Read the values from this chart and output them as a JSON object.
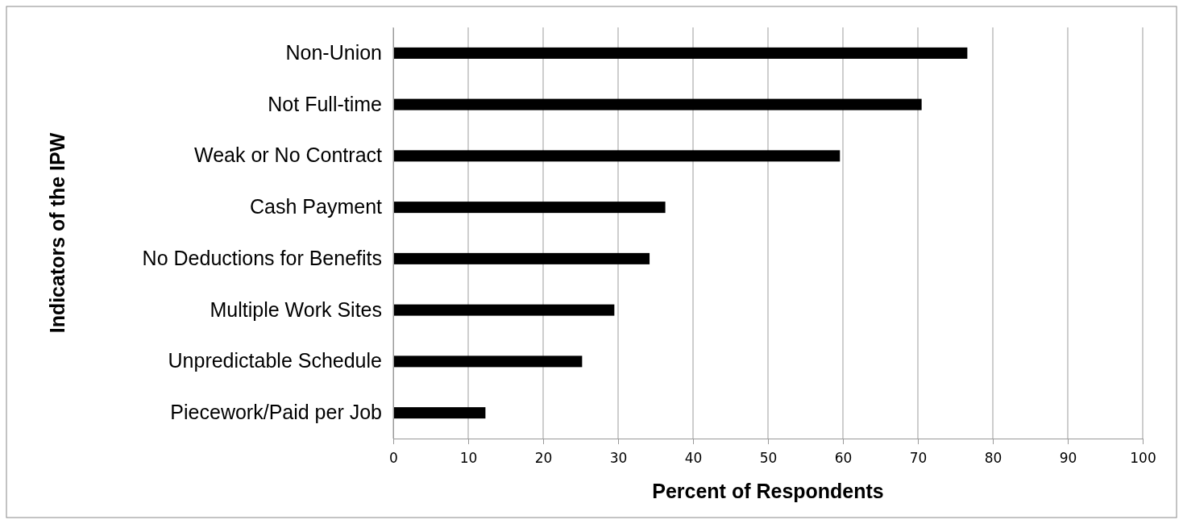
{
  "chart_data": {
    "type": "bar",
    "orientation": "horizontal",
    "xlabel": "Percent of Respondents",
    "ylabel": "Indicators of the IPW",
    "categories": [
      "Non-Union",
      "Not Full-time",
      "Weak or No Contract",
      "Cash Payment",
      "No Deductions for Benefits",
      "Multiple Work Sites",
      "Unpredictable Schedule",
      "Piecework/Paid per Job"
    ],
    "values": [
      76.6,
      70.5,
      59.6,
      36.3,
      34.2,
      29.5,
      25.2,
      12.3
    ],
    "color": "#000000",
    "xlim": [
      0,
      100
    ],
    "xticks": [
      0,
      10,
      20,
      30,
      40,
      50,
      60,
      70,
      80,
      90,
      100
    ],
    "grid": "x"
  }
}
